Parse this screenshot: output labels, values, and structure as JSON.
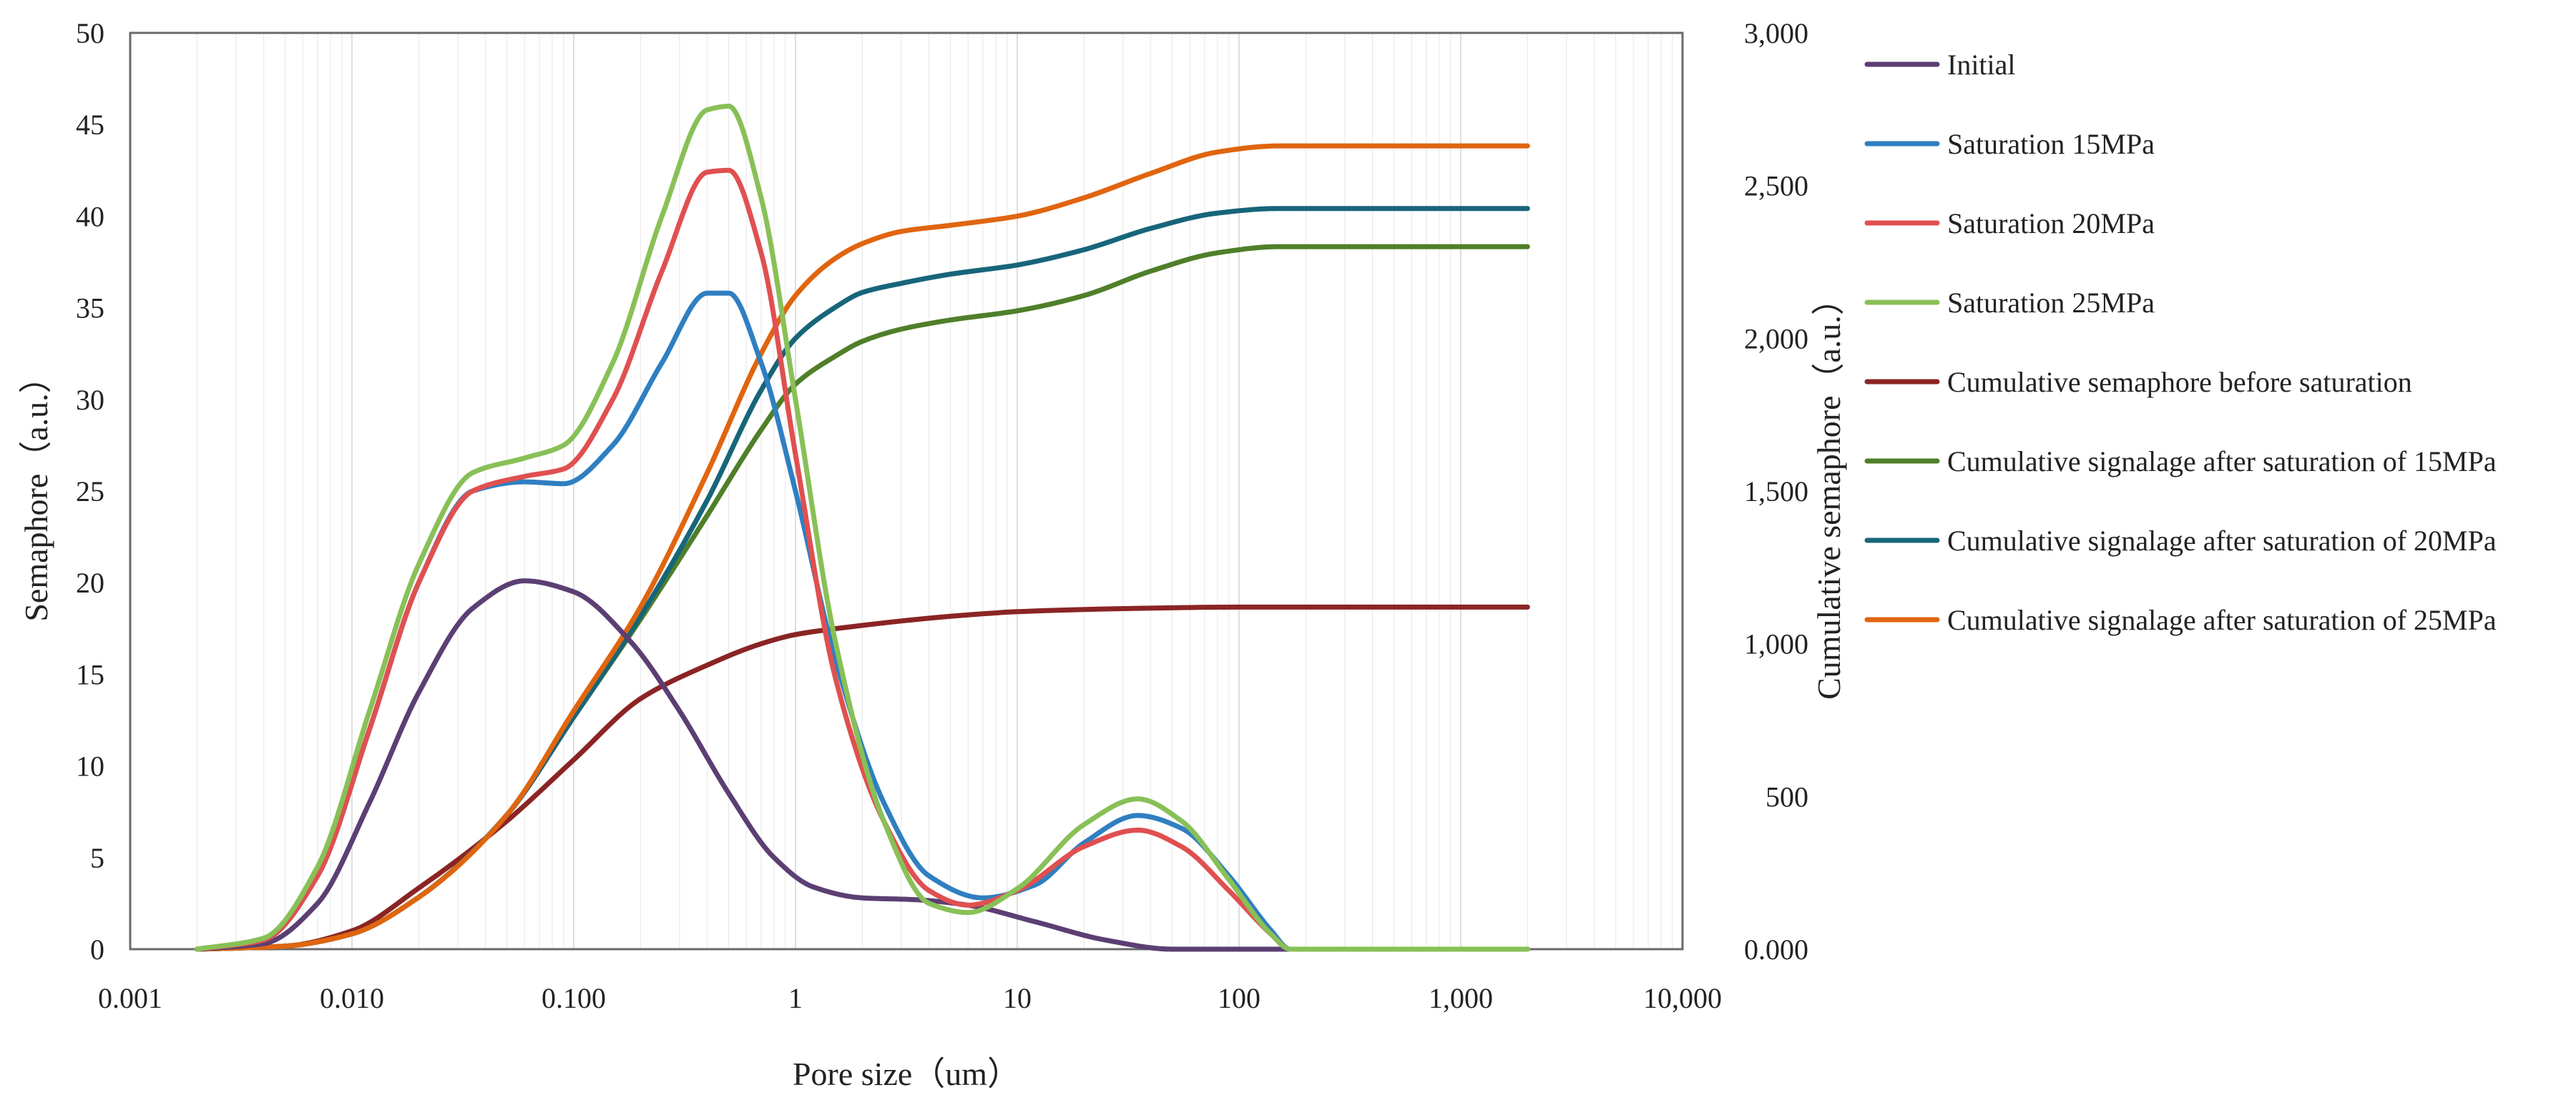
{
  "chart_data": {
    "type": "line",
    "x_scale": "log",
    "xlabel": "Pore size（um）",
    "ylabel_left": "Semaphore（a.u.）",
    "ylabel_right": "Cumulative semaphore（a.u.）",
    "xlim": [
      0.001,
      10000
    ],
    "ylim_left": [
      0,
      50
    ],
    "ylim_right": [
      0,
      3000
    ],
    "x_ticks": [
      0.001,
      0.01,
      0.1,
      1,
      10,
      100,
      1000,
      10000
    ],
    "x_tick_labels": [
      "0.001",
      "0.010",
      "0.100",
      "1",
      "10",
      "100",
      "1,000",
      "10,000"
    ],
    "y_left_ticks": [
      0,
      5,
      10,
      15,
      20,
      25,
      30,
      35,
      40,
      45,
      50
    ],
    "y_left_tick_labels": [
      "0",
      "5",
      "10",
      "15",
      "20",
      "25",
      "30",
      "35",
      "40",
      "45",
      "50"
    ],
    "y_right_ticks": [
      0,
      500,
      1000,
      1500,
      2000,
      2500,
      3000
    ],
    "y_right_tick_labels": [
      "0.000",
      "500",
      "1,000",
      "1,500",
      "2,000",
      "2,500",
      "3,000"
    ],
    "grid": true,
    "legend_position": "right",
    "series": [
      {
        "name": "Initial",
        "axis": "left",
        "color": "#5b3f73",
        "points": [
          [
            0.002,
            0
          ],
          [
            0.004,
            0.3
          ],
          [
            0.007,
            2.5
          ],
          [
            0.012,
            8
          ],
          [
            0.02,
            14
          ],
          [
            0.035,
            18.6
          ],
          [
            0.06,
            20.1
          ],
          [
            0.1,
            19.5
          ],
          [
            0.18,
            16.8
          ],
          [
            0.3,
            13
          ],
          [
            0.5,
            8.5
          ],
          [
            0.8,
            5
          ],
          [
            1.2,
            3.4
          ],
          [
            2,
            2.8
          ],
          [
            3.5,
            2.7
          ],
          [
            6,
            2.4
          ],
          [
            12,
            1.5
          ],
          [
            25,
            0.5
          ],
          [
            50,
            0
          ],
          [
            100,
            0
          ],
          [
            2000,
            0
          ]
        ]
      },
      {
        "name": "Saturation  15MPa",
        "axis": "left",
        "color": "#2f7fc1",
        "points": [
          [
            0.002,
            0
          ],
          [
            0.004,
            0.5
          ],
          [
            0.007,
            4
          ],
          [
            0.012,
            12
          ],
          [
            0.02,
            20
          ],
          [
            0.035,
            25
          ],
          [
            0.06,
            25.5
          ],
          [
            0.09,
            25.4
          ],
          [
            0.15,
            27.5
          ],
          [
            0.25,
            32
          ],
          [
            0.4,
            35.8
          ],
          [
            0.5,
            35.8
          ],
          [
            0.7,
            32
          ],
          [
            1,
            25
          ],
          [
            1.5,
            16
          ],
          [
            2.5,
            8
          ],
          [
            4,
            4
          ],
          [
            7,
            2.8
          ],
          [
            12,
            3.5
          ],
          [
            20,
            5.8
          ],
          [
            35,
            7.3
          ],
          [
            55,
            6.6
          ],
          [
            90,
            4
          ],
          [
            140,
            1
          ],
          [
            170,
            0
          ],
          [
            2000,
            0
          ]
        ]
      },
      {
        "name": "Saturation  20MPa",
        "axis": "left",
        "color": "#e05050",
        "points": [
          [
            0.002,
            0
          ],
          [
            0.004,
            0.5
          ],
          [
            0.007,
            4
          ],
          [
            0.012,
            12
          ],
          [
            0.02,
            20
          ],
          [
            0.035,
            25
          ],
          [
            0.06,
            25.8
          ],
          [
            0.09,
            26.2
          ],
          [
            0.15,
            30
          ],
          [
            0.25,
            37
          ],
          [
            0.4,
            42.4
          ],
          [
            0.5,
            42.5
          ],
          [
            0.7,
            38
          ],
          [
            1,
            27
          ],
          [
            1.5,
            15
          ],
          [
            2.5,
            7
          ],
          [
            4,
            3.2
          ],
          [
            6,
            2.4
          ],
          [
            10,
            3.2
          ],
          [
            20,
            5.6
          ],
          [
            35,
            6.5
          ],
          [
            55,
            5.6
          ],
          [
            90,
            3.2
          ],
          [
            140,
            0.8
          ],
          [
            170,
            0
          ],
          [
            2000,
            0
          ]
        ]
      },
      {
        "name": "Saturation  25MPa",
        "axis": "left",
        "color": "#88c057",
        "points": [
          [
            0.002,
            0
          ],
          [
            0.004,
            0.6
          ],
          [
            0.007,
            4.5
          ],
          [
            0.012,
            13
          ],
          [
            0.02,
            21
          ],
          [
            0.035,
            26
          ],
          [
            0.06,
            26.8
          ],
          [
            0.09,
            27.5
          ],
          [
            0.15,
            32
          ],
          [
            0.25,
            40
          ],
          [
            0.4,
            45.8
          ],
          [
            0.5,
            46
          ],
          [
            0.7,
            41
          ],
          [
            1,
            30
          ],
          [
            1.5,
            17
          ],
          [
            2.5,
            7
          ],
          [
            4,
            2.5
          ],
          [
            6,
            2
          ],
          [
            10,
            3.3
          ],
          [
            20,
            6.8
          ],
          [
            35,
            8.2
          ],
          [
            55,
            7
          ],
          [
            90,
            3.8
          ],
          [
            140,
            0.8
          ],
          [
            170,
            0
          ],
          [
            2000,
            0
          ]
        ]
      },
      {
        "name": "Cumulative semaphore before saturation",
        "axis": "right",
        "color": "#8b2424",
        "points": [
          [
            0.002,
            0
          ],
          [
            0.005,
            10
          ],
          [
            0.01,
            60
          ],
          [
            0.02,
            200
          ],
          [
            0.05,
            420
          ],
          [
            0.1,
            620
          ],
          [
            0.2,
            820
          ],
          [
            0.4,
            930
          ],
          [
            0.7,
            1000
          ],
          [
            1,
            1030
          ],
          [
            2,
            1060
          ],
          [
            5,
            1090
          ],
          [
            10,
            1105
          ],
          [
            30,
            1115
          ],
          [
            100,
            1120
          ],
          [
            2000,
            1120
          ]
        ]
      },
      {
        "name": "Cumulative signalage after saturation of 15MPa",
        "axis": "right",
        "color": "#4f7f2a",
        "points": [
          [
            0.002,
            0
          ],
          [
            0.005,
            10
          ],
          [
            0.01,
            50
          ],
          [
            0.02,
            170
          ],
          [
            0.05,
            440
          ],
          [
            0.1,
            760
          ],
          [
            0.2,
            1080
          ],
          [
            0.4,
            1420
          ],
          [
            0.7,
            1700
          ],
          [
            1,
            1850
          ],
          [
            1.5,
            1940
          ],
          [
            2,
            1990
          ],
          [
            3,
            2030
          ],
          [
            5,
            2060
          ],
          [
            10,
            2090
          ],
          [
            20,
            2140
          ],
          [
            40,
            2220
          ],
          [
            80,
            2280
          ],
          [
            150,
            2300
          ],
          [
            2000,
            2300
          ]
        ]
      },
      {
        "name": "Cumulative signalage after saturation of 20MPa",
        "axis": "right",
        "color": "#17657a",
        "points": [
          [
            0.002,
            0
          ],
          [
            0.005,
            10
          ],
          [
            0.01,
            50
          ],
          [
            0.02,
            170
          ],
          [
            0.05,
            440
          ],
          [
            0.1,
            760
          ],
          [
            0.2,
            1090
          ],
          [
            0.4,
            1470
          ],
          [
            0.7,
            1830
          ],
          [
            1,
            2000
          ],
          [
            1.5,
            2100
          ],
          [
            2,
            2150
          ],
          [
            3,
            2180
          ],
          [
            5,
            2210
          ],
          [
            10,
            2240
          ],
          [
            20,
            2290
          ],
          [
            40,
            2360
          ],
          [
            80,
            2410
          ],
          [
            150,
            2425
          ],
          [
            2000,
            2425
          ]
        ]
      },
      {
        "name": "Cumulative signalage after saturation of 25MPa",
        "axis": "right",
        "color": "#e0650f",
        "points": [
          [
            0.002,
            0
          ],
          [
            0.005,
            10
          ],
          [
            0.01,
            50
          ],
          [
            0.02,
            170
          ],
          [
            0.05,
            440
          ],
          [
            0.1,
            780
          ],
          [
            0.2,
            1120
          ],
          [
            0.4,
            1560
          ],
          [
            0.7,
            1950
          ],
          [
            1,
            2140
          ],
          [
            1.5,
            2260
          ],
          [
            2,
            2310
          ],
          [
            3,
            2350
          ],
          [
            5,
            2370
          ],
          [
            10,
            2400
          ],
          [
            20,
            2460
          ],
          [
            40,
            2540
          ],
          [
            80,
            2610
          ],
          [
            150,
            2630
          ],
          [
            2000,
            2630
          ]
        ]
      }
    ]
  }
}
